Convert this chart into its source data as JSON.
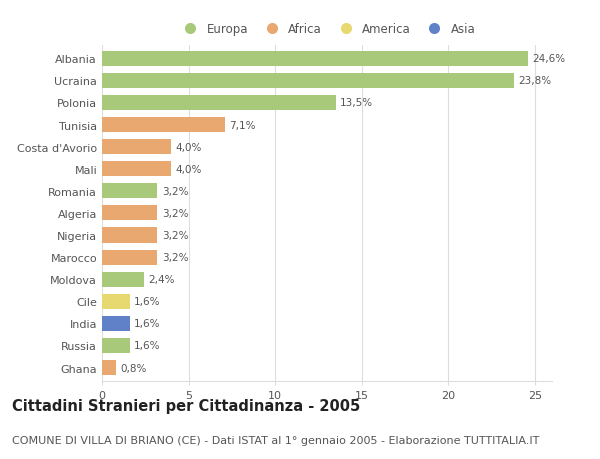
{
  "countries": [
    "Albania",
    "Ucraina",
    "Polonia",
    "Tunisia",
    "Costa d'Avorio",
    "Mali",
    "Romania",
    "Algeria",
    "Nigeria",
    "Marocco",
    "Moldova",
    "Cile",
    "India",
    "Russia",
    "Ghana"
  ],
  "values": [
    24.6,
    23.8,
    13.5,
    7.1,
    4.0,
    4.0,
    3.2,
    3.2,
    3.2,
    3.2,
    2.4,
    1.6,
    1.6,
    1.6,
    0.8
  ],
  "labels": [
    "24,6%",
    "23,8%",
    "13,5%",
    "7,1%",
    "4,0%",
    "4,0%",
    "3,2%",
    "3,2%",
    "3,2%",
    "3,2%",
    "2,4%",
    "1,6%",
    "1,6%",
    "1,6%",
    "0,8%"
  ],
  "continents": [
    "Europa",
    "Europa",
    "Europa",
    "Africa",
    "Africa",
    "Africa",
    "Europa",
    "Africa",
    "Africa",
    "Africa",
    "Europa",
    "America",
    "Asia",
    "Europa",
    "Africa"
  ],
  "colors": {
    "Europa": "#a8c87a",
    "Africa": "#e8a870",
    "America": "#e8d870",
    "Asia": "#6080c8"
  },
  "legend_order": [
    "Europa",
    "Africa",
    "America",
    "Asia"
  ],
  "xlim": [
    0,
    26
  ],
  "xticks": [
    0,
    5,
    10,
    15,
    20,
    25
  ],
  "title": "Cittadini Stranieri per Cittadinanza - 2005",
  "subtitle": "COMUNE DI VILLA DI BRIANO (CE) - Dati ISTAT al 1° gennaio 2005 - Elaborazione TUTTITALIA.IT",
  "background_color": "#ffffff",
  "bar_height": 0.68,
  "grid_color": "#dddddd",
  "title_fontsize": 10.5,
  "subtitle_fontsize": 8,
  "label_fontsize": 7.5,
  "tick_fontsize": 8,
  "legend_fontsize": 8.5
}
